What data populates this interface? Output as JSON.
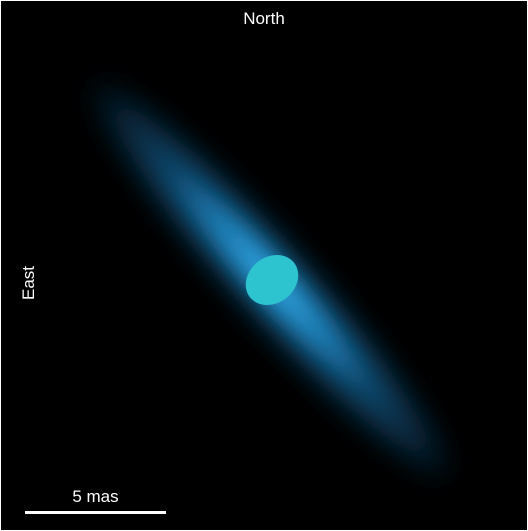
{
  "orientation": {
    "north_label": "North",
    "east_label": "East"
  },
  "scale_bar": {
    "label": "5 mas"
  },
  "colors": {
    "background": "#000000",
    "disk": "#1f8fd2",
    "star": "#2ec4cf",
    "text": "#ffffff"
  }
}
